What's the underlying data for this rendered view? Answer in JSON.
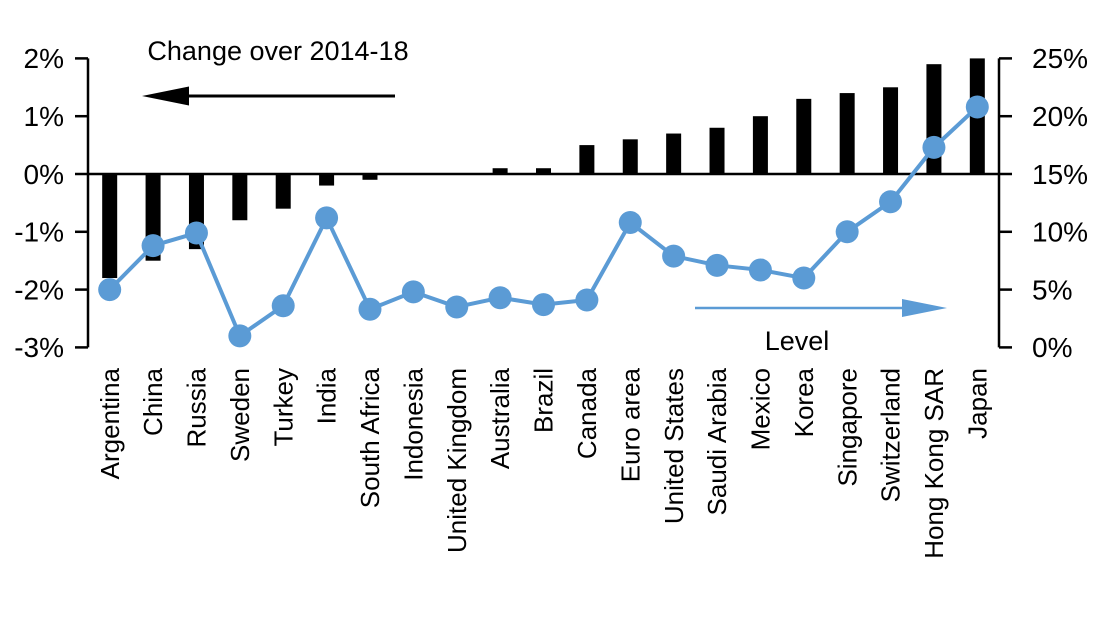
{
  "page": {
    "background": "#FFFFFF"
  },
  "chart_data": {
    "type": "combo-bar-line",
    "title": "Change over 2014-18",
    "categories": [
      "Argentina",
      "China",
      "Russia",
      "Sweden",
      "Turkey",
      "India",
      "South Africa",
      "Indonesia",
      "United Kingdom",
      "Australia",
      "Brazil",
      "Canada",
      "Euro area",
      "United States",
      "Saudi Arabia",
      "Mexico",
      "Korea",
      "Singapore",
      "Switzerland",
      "Hong Kong SAR",
      "Japan"
    ],
    "series": [
      {
        "name": "Change over 2014-18",
        "type": "bar",
        "axis": "left",
        "color": "#000000",
        "values": [
          -1.8,
          -1.5,
          -1.3,
          -0.8,
          -0.6,
          -0.2,
          -0.1,
          0,
          0,
          0.1,
          0.1,
          0.5,
          0.6,
          0.7,
          0.8,
          1.0,
          1.3,
          1.4,
          1.5,
          1.9,
          2.0
        ]
      },
      {
        "name": "Level",
        "type": "line",
        "axis": "right",
        "color": "#5B9BD5",
        "values": [
          5.0,
          8.8,
          9.9,
          1.0,
          3.6,
          11.2,
          3.3,
          4.8,
          3.5,
          4.3,
          3.7,
          4.1,
          10.8,
          7.9,
          7.1,
          6.7,
          6.0,
          10.0,
          12.6,
          17.3,
          20.8
        ]
      }
    ],
    "left_axis": {
      "tick_labels": [
        "2%",
        "1%",
        "0%",
        "-1%",
        "-2%",
        "-3%"
      ],
      "tick_values": [
        2,
        1,
        0,
        -1,
        -2,
        -3
      ],
      "min": -3,
      "max": 2
    },
    "right_axis": {
      "tick_labels": [
        "25%",
        "20%",
        "15%",
        "10%",
        "5%",
        "0%"
      ],
      "tick_values": [
        25,
        20,
        15,
        10,
        5,
        0
      ],
      "min": 0,
      "max": 25
    },
    "annotations": [
      {
        "id": "bar-series-label",
        "text": "Change over 2014-18",
        "arrow": "left",
        "color": "#000000"
      },
      {
        "id": "line-series-label",
        "text": "Level",
        "arrow": "right",
        "color": "#5B9BD5"
      }
    ],
    "grid": false,
    "legend_position": "none"
  }
}
